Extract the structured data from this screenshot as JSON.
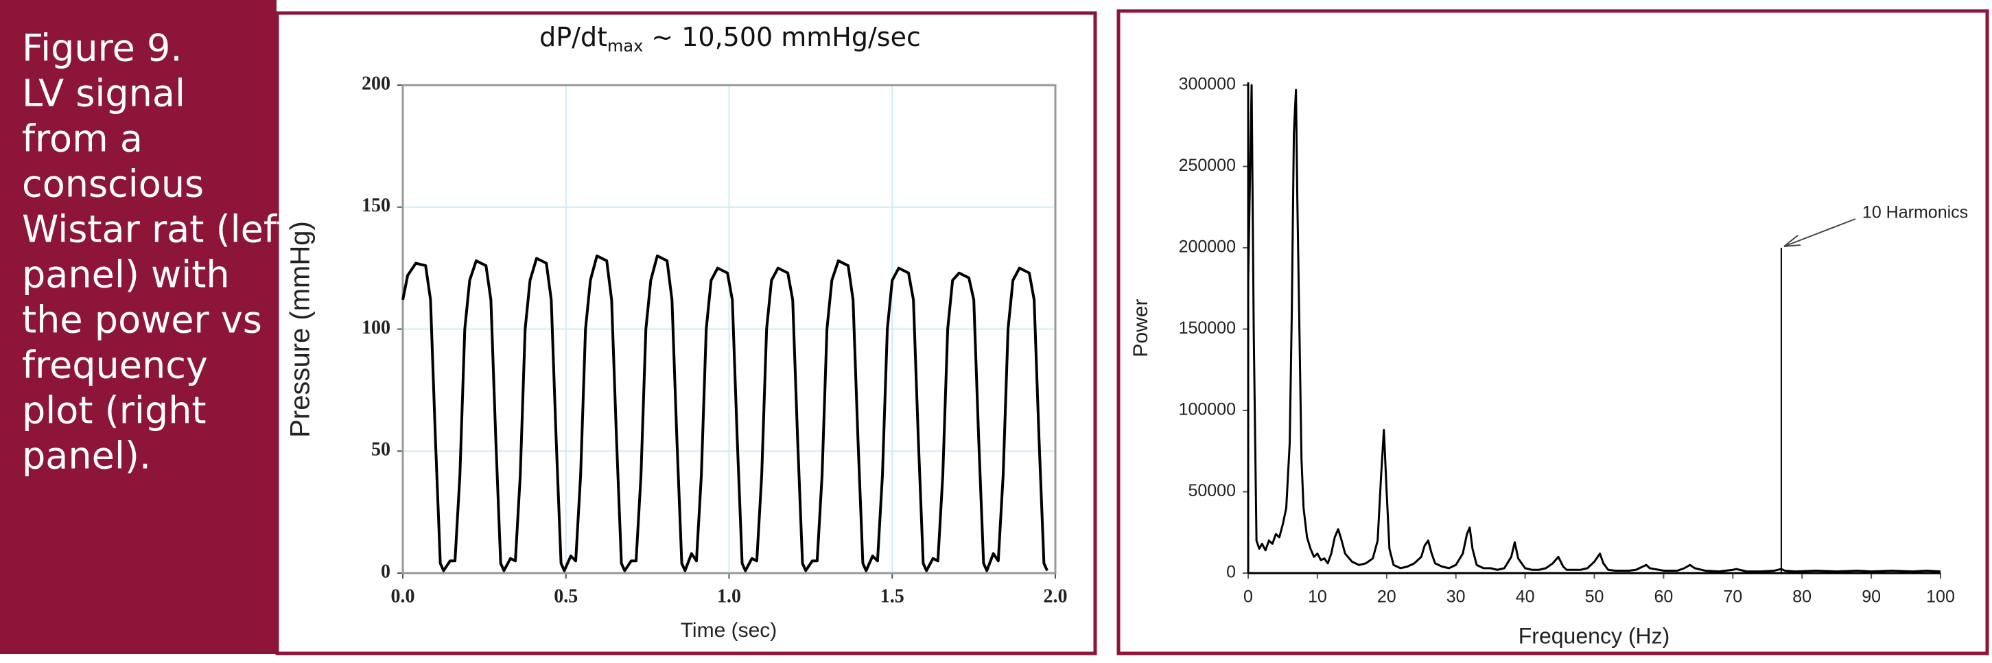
{
  "caption": [
    "Figure 9.",
    "LV signal",
    "from a",
    "conscious",
    "Wistar rat (left",
    "panel) with",
    "the power vs",
    "frequency",
    "plot (right",
    "panel)."
  ],
  "chart_data": [
    {
      "type": "line",
      "title": {
        "main": "dP/dt",
        "sub": "max",
        "rest": "~ 10,500 mmHg/sec"
      },
      "xlabel": "Time (sec)",
      "ylabel": "Pressure (mmHg)",
      "xlim": [
        0,
        2
      ],
      "ylim": [
        0,
        200
      ],
      "xticks": [
        {
          "value": 0,
          "label": "0.0"
        },
        0.5,
        {
          "value": 1,
          "label": "1.0"
        },
        1.5,
        {
          "value": 2,
          "label": "2.0"
        }
      ],
      "yticks": [
        0,
        50,
        100,
        150,
        200
      ],
      "grid": true,
      "color": "#000000",
      "x": [
        0,
        0.015,
        0.04,
        0.07,
        0.085,
        0.1,
        0.115,
        0.125,
        0.145,
        0.16,
        0.175,
        0.19,
        0.205,
        0.225,
        0.255,
        0.27,
        0.285,
        0.3,
        0.31,
        0.33,
        0.345,
        0.36,
        0.375,
        0.39,
        0.41,
        0.44,
        0.455,
        0.47,
        0.485,
        0.495,
        0.515,
        0.53,
        0.545,
        0.56,
        0.575,
        0.595,
        0.625,
        0.64,
        0.655,
        0.67,
        0.68,
        0.7,
        0.715,
        0.73,
        0.745,
        0.76,
        0.78,
        0.81,
        0.825,
        0.84,
        0.855,
        0.865,
        0.885,
        0.9,
        0.915,
        0.93,
        0.945,
        0.965,
        0.995,
        1.01,
        1.025,
        1.04,
        1.05,
        1.07,
        1.085,
        1.1,
        1.115,
        1.13,
        1.15,
        1.18,
        1.195,
        1.21,
        1.225,
        1.235,
        1.255,
        1.27,
        1.285,
        1.3,
        1.315,
        1.335,
        1.365,
        1.38,
        1.395,
        1.41,
        1.42,
        1.44,
        1.455,
        1.47,
        1.485,
        1.5,
        1.52,
        1.55,
        1.565,
        1.58,
        1.595,
        1.605,
        1.625,
        1.64,
        1.655,
        1.67,
        1.685,
        1.705,
        1.735,
        1.75,
        1.765,
        1.78,
        1.79,
        1.81,
        1.825,
        1.84,
        1.855,
        1.87,
        1.89,
        1.92,
        1.935,
        1.95,
        1.965,
        1.975
      ],
      "values": [
        112,
        122,
        127,
        126,
        112,
        55,
        4,
        1,
        5,
        5,
        40,
        100,
        120,
        128,
        126,
        112,
        55,
        4,
        1,
        6,
        5,
        40,
        100,
        120,
        129,
        127,
        112,
        55,
        4,
        1,
        7,
        5,
        40,
        100,
        120,
        130,
        128,
        112,
        55,
        4,
        1,
        5,
        5,
        40,
        100,
        120,
        130,
        128,
        112,
        55,
        4,
        1,
        8,
        5,
        40,
        100,
        120,
        125,
        123,
        112,
        55,
        4,
        1,
        6,
        5,
        40,
        100,
        120,
        125,
        123,
        112,
        55,
        4,
        1,
        5,
        5,
        40,
        100,
        120,
        128,
        126,
        112,
        55,
        4,
        1,
        7,
        5,
        40,
        100,
        120,
        125,
        123,
        112,
        55,
        4,
        1,
        6,
        5,
        40,
        100,
        120,
        123,
        121,
        112,
        55,
        4,
        1,
        8,
        5,
        40,
        100,
        120,
        125,
        123,
        112,
        55,
        4,
        1
      ]
    },
    {
      "type": "line",
      "xlabel": "Frequency (Hz)",
      "ylabel": "Power",
      "xlim": [
        0,
        100
      ],
      "ylim": [
        0,
        300000
      ],
      "xticks": [
        0,
        10,
        20,
        30,
        40,
        50,
        60,
        70,
        80,
        90,
        100
      ],
      "yticks": [
        0,
        50000,
        100000,
        150000,
        200000,
        250000,
        300000
      ],
      "grid": false,
      "color": "#000000",
      "annotation": {
        "text": "10 Harmonics",
        "x": 77,
        "y": 200000
      },
      "x": [
        0,
        0.5,
        0.8,
        1.2,
        1.6,
        2,
        2.5,
        3,
        3.5,
        4,
        4.5,
        5,
        5.5,
        6,
        6.3,
        6.6,
        6.9,
        7.1,
        7.4,
        7.7,
        8,
        8.5,
        9,
        9.5,
        10,
        10.5,
        11,
        11.5,
        12,
        12.5,
        13,
        13.5,
        14,
        15,
        16,
        17,
        18,
        18.7,
        19.2,
        19.6,
        20,
        20.4,
        21,
        22,
        23,
        24,
        25,
        25.5,
        26,
        26.5,
        27,
        28,
        29,
        30,
        31,
        31.6,
        32,
        32.4,
        33,
        34,
        35,
        36,
        37,
        38,
        38.5,
        39,
        40,
        41,
        42,
        43,
        44,
        44.8,
        45.5,
        46,
        47,
        48,
        49,
        50,
        50.8,
        51.3,
        52,
        53,
        54,
        55,
        56,
        57,
        57.5,
        58,
        60,
        62,
        63,
        63.8,
        64.5,
        66,
        68,
        70,
        70.5,
        72,
        74,
        76,
        77,
        77.5,
        79,
        82,
        85,
        88,
        90,
        93,
        96,
        98,
        100
      ],
      "values": [
        180000,
        300000,
        150000,
        20000,
        15000,
        18000,
        14000,
        20000,
        18000,
        24000,
        22000,
        30000,
        40000,
        80000,
        160000,
        270000,
        297000,
        230000,
        150000,
        70000,
        40000,
        22000,
        15000,
        10000,
        12000,
        8000,
        9000,
        6000,
        12000,
        22000,
        27000,
        20000,
        12000,
        7000,
        5000,
        6000,
        9000,
        20000,
        60000,
        88000,
        50000,
        15000,
        5000,
        3000,
        4000,
        6000,
        10000,
        17000,
        20000,
        12000,
        6000,
        4000,
        3000,
        5000,
        12000,
        24000,
        28000,
        15000,
        5000,
        3000,
        3000,
        2000,
        3000,
        10000,
        19000,
        9000,
        3000,
        2000,
        2000,
        3000,
        6000,
        10000,
        4000,
        2000,
        2000,
        2000,
        3000,
        7000,
        12000,
        6000,
        2000,
        1500,
        1500,
        1500,
        2000,
        4000,
        5000,
        3000,
        1500,
        1500,
        3000,
        5000,
        3000,
        1500,
        1000,
        2000,
        2500,
        1000,
        1000,
        1500,
        2500,
        1500,
        1000,
        1500,
        1000,
        1500,
        1000,
        1500,
        1000,
        1500,
        1000
      ]
    }
  ]
}
